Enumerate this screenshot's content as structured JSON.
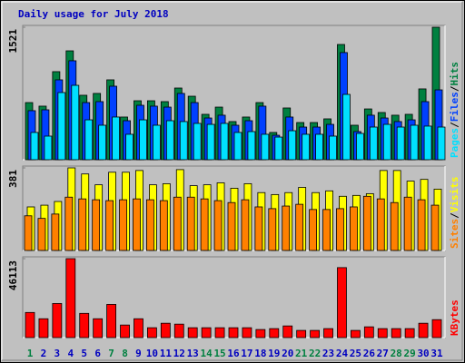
{
  "title": "Daily usage for July 2018",
  "legend_separator": "/",
  "chart_data": [
    {
      "type": "bar",
      "categories": [
        1,
        2,
        3,
        4,
        5,
        6,
        7,
        8,
        9,
        10,
        11,
        12,
        13,
        14,
        15,
        16,
        17,
        18,
        19,
        20,
        21,
        22,
        23,
        24,
        25,
        26,
        27,
        28,
        29,
        30,
        31
      ],
      "ylim": [
        0,
        1521
      ],
      "yticks": [
        1521
      ],
      "series": [
        {
          "name": "Hits",
          "color": "#008040",
          "values": [
            656,
            615,
            1011,
            1250,
            740,
            761,
            917,
            490,
            677,
            677,
            667,
            823,
            729,
            521,
            604,
            438,
            490,
            656,
            313,
            594,
            427,
            427,
            469,
            1323,
            396,
            583,
            542,
            511,
            521,
            813,
            1521
          ]
        },
        {
          "name": "Files",
          "color": "#0040ff",
          "values": [
            563,
            573,
            917,
            1136,
            656,
            667,
            844,
            448,
            625,
            615,
            604,
            761,
            656,
            479,
            511,
            396,
            448,
            615,
            281,
            490,
            375,
            375,
            406,
            1230,
            323,
            511,
            479,
            438,
            458,
            667,
            802
          ]
        },
        {
          "name": "Pages",
          "color": "#00e0ff",
          "values": [
            313,
            271,
            771,
            854,
            458,
            396,
            490,
            292,
            458,
            396,
            448,
            438,
            417,
            406,
            417,
            313,
            323,
            292,
            260,
            333,
            292,
            292,
            271,
            750,
            302,
            375,
            406,
            375,
            396,
            386,
            375
          ]
        }
      ]
    },
    {
      "type": "bar",
      "categories": [
        1,
        2,
        3,
        4,
        5,
        6,
        7,
        8,
        9,
        10,
        11,
        12,
        13,
        14,
        15,
        16,
        17,
        18,
        19,
        20,
        21,
        22,
        23,
        24,
        25,
        26,
        27,
        28,
        29,
        30,
        31
      ],
      "ylim": [
        0,
        381
      ],
      "yticks": [
        381
      ],
      "series": [
        {
          "name": "Visits",
          "color": "#ffff00",
          "values": [
            201,
            209,
            226,
            381,
            353,
            303,
            361,
            361,
            369,
            303,
            308,
            373,
            299,
            303,
            312,
            287,
            308,
            267,
            258,
            267,
            291,
            267,
            275,
            250,
            254,
            262,
            369,
            369,
            320,
            328,
            283
          ]
        },
        {
          "name": "Sites",
          "color": "#ff8000",
          "values": [
            160,
            148,
            168,
            246,
            238,
            234,
            230,
            234,
            238,
            234,
            230,
            246,
            246,
            238,
            230,
            221,
            234,
            201,
            193,
            205,
            213,
            189,
            189,
            193,
            201,
            250,
            238,
            221,
            246,
            234,
            209
          ]
        }
      ]
    },
    {
      "type": "bar",
      "categories": [
        1,
        2,
        3,
        4,
        5,
        6,
        7,
        8,
        9,
        10,
        11,
        12,
        13,
        14,
        15,
        16,
        17,
        18,
        19,
        20,
        21,
        22,
        23,
        24,
        25,
        26,
        27,
        28,
        29,
        30,
        31
      ],
      "category_colors": [
        "#008040",
        "#0000c0",
        "#0000c0",
        "#0000c0",
        "#0000c0",
        "#0000c0",
        "#008040",
        "#008040",
        "#0000c0",
        "#0000c0",
        "#0000c0",
        "#0000c0",
        "#0000c0",
        "#008040",
        "#008040",
        "#0000c0",
        "#0000c0",
        "#0000c0",
        "#0000c0",
        "#0000c0",
        "#008040",
        "#008040",
        "#0000c0",
        "#0000c0",
        "#0000c0",
        "#0000c0",
        "#0000c0",
        "#008040",
        "#008040",
        "#0000c0",
        "#0000c0"
      ],
      "ylim": [
        0,
        46113
      ],
      "yticks": [
        46113
      ],
      "series": [
        {
          "name": "KBytes",
          "color": "#ff0000",
          "values": [
            14672,
            11004,
            19912,
            46113,
            14148,
            11004,
            19388,
            7336,
            11004,
            5764,
            8384,
            7860,
            5764,
            5764,
            5764,
            5764,
            5764,
            4716,
            5240,
            6812,
            4192,
            4192,
            5240,
            40872,
            4192,
            6288,
            5240,
            5240,
            5240,
            8384,
            10480
          ]
        }
      ]
    }
  ]
}
